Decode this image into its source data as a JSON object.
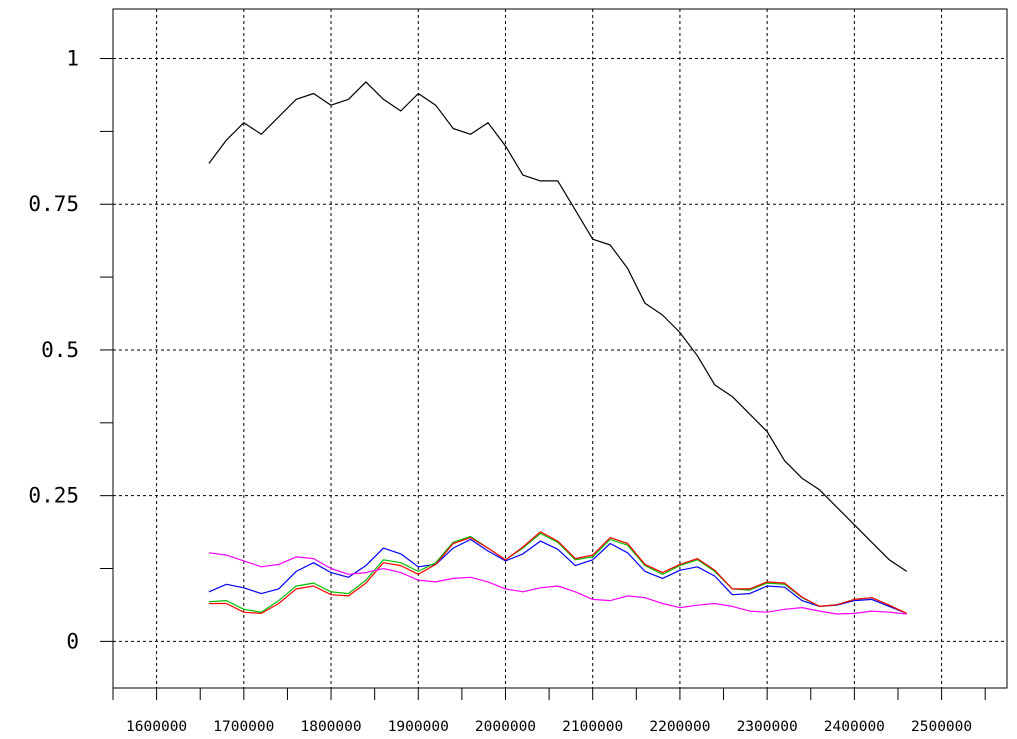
{
  "chart_data": {
    "type": "line",
    "title": "",
    "xlabel": "",
    "ylabel": "",
    "xlim": [
      1550000,
      2575000
    ],
    "ylim": [
      -0.08,
      1.085
    ],
    "grid": true,
    "x_ticks": [
      1600000,
      1700000,
      1800000,
      1900000,
      2000000,
      2100000,
      2200000,
      2300000,
      2400000,
      2500000
    ],
    "x_tick_labels": [
      "1600000",
      "1700000",
      "1800000",
      "1900000",
      "2000000",
      "2100000",
      "2200000",
      "2300000",
      "2400000",
      "2500000"
    ],
    "y_ticks": [
      0,
      0.25,
      0.5,
      0.75,
      1
    ],
    "y_tick_labels": [
      "0",
      "0.25",
      "0.5",
      "0.75",
      "1"
    ],
    "series": [
      {
        "color": "#000000",
        "x": [
          1660000,
          1680000,
          1700000,
          1720000,
          1740000,
          1760000,
          1780000,
          1800000,
          1820000,
          1840000,
          1860000,
          1880000,
          1900000,
          1920000,
          1940000,
          1960000,
          1980000,
          2000000,
          2020000,
          2040000,
          2060000,
          2080000,
          2100000,
          2120000,
          2140000,
          2160000,
          2180000,
          2200000,
          2220000,
          2240000,
          2260000,
          2280000,
          2300000,
          2320000,
          2340000,
          2360000,
          2380000,
          2400000,
          2420000,
          2440000,
          2460000
        ],
        "y": [
          0.82,
          0.86,
          0.89,
          0.87,
          0.9,
          0.93,
          0.94,
          0.92,
          0.93,
          0.96,
          0.93,
          0.91,
          0.94,
          0.92,
          0.88,
          0.87,
          0.89,
          0.85,
          0.8,
          0.79,
          0.79,
          0.74,
          0.69,
          0.68,
          0.64,
          0.58,
          0.56,
          0.53,
          0.49,
          0.44,
          0.42,
          0.39,
          0.36,
          0.31,
          0.28,
          0.26,
          0.23,
          0.2,
          0.17,
          0.14,
          0.12
        ]
      },
      {
        "color": "#0000ff",
        "x": [
          1660000,
          1680000,
          1700000,
          1720000,
          1740000,
          1760000,
          1780000,
          1800000,
          1820000,
          1840000,
          1860000,
          1880000,
          1900000,
          1920000,
          1940000,
          1960000,
          1980000,
          2000000,
          2020000,
          2040000,
          2060000,
          2080000,
          2100000,
          2120000,
          2140000,
          2160000,
          2180000,
          2200000,
          2220000,
          2240000,
          2260000,
          2280000,
          2300000,
          2320000,
          2340000,
          2360000,
          2380000,
          2400000,
          2420000,
          2440000,
          2460000
        ],
        "y": [
          0.085,
          0.098,
          0.092,
          0.082,
          0.09,
          0.12,
          0.135,
          0.118,
          0.11,
          0.13,
          0.16,
          0.15,
          0.128,
          0.132,
          0.16,
          0.175,
          0.155,
          0.138,
          0.15,
          0.172,
          0.158,
          0.13,
          0.14,
          0.168,
          0.152,
          0.12,
          0.108,
          0.122,
          0.128,
          0.112,
          0.08,
          0.082,
          0.095,
          0.093,
          0.07,
          0.06,
          0.062,
          0.07,
          0.072,
          0.06,
          0.048
        ]
      },
      {
        "color": "#00c000",
        "x": [
          1660000,
          1680000,
          1700000,
          1720000,
          1740000,
          1760000,
          1780000,
          1800000,
          1820000,
          1840000,
          1860000,
          1880000,
          1900000,
          1920000,
          1940000,
          1960000,
          1980000,
          2000000,
          2020000,
          2040000,
          2060000,
          2080000,
          2100000,
          2120000,
          2140000,
          2160000,
          2180000,
          2200000,
          2220000,
          2240000,
          2260000,
          2280000,
          2300000,
          2320000,
          2340000,
          2360000,
          2380000,
          2400000,
          2420000,
          2440000,
          2460000
        ],
        "y": [
          0.068,
          0.07,
          0.055,
          0.05,
          0.07,
          0.095,
          0.1,
          0.085,
          0.082,
          0.105,
          0.14,
          0.135,
          0.12,
          0.135,
          0.17,
          0.18,
          0.16,
          0.14,
          0.16,
          0.185,
          0.17,
          0.14,
          0.145,
          0.175,
          0.165,
          0.13,
          0.115,
          0.13,
          0.14,
          0.12,
          0.09,
          0.088,
          0.1,
          0.098,
          0.075,
          0.06,
          0.063,
          0.072,
          0.075,
          0.062,
          0.048
        ]
      },
      {
        "color": "#ff0000",
        "x": [
          1660000,
          1680000,
          1700000,
          1720000,
          1740000,
          1760000,
          1780000,
          1800000,
          1820000,
          1840000,
          1860000,
          1880000,
          1900000,
          1920000,
          1940000,
          1960000,
          1980000,
          2000000,
          2020000,
          2040000,
          2060000,
          2080000,
          2100000,
          2120000,
          2140000,
          2160000,
          2180000,
          2200000,
          2220000,
          2240000,
          2260000,
          2280000,
          2300000,
          2320000,
          2340000,
          2360000,
          2380000,
          2400000,
          2420000,
          2440000,
          2460000
        ],
        "y": [
          0.065,
          0.065,
          0.05,
          0.048,
          0.065,
          0.09,
          0.095,
          0.08,
          0.078,
          0.1,
          0.135,
          0.13,
          0.115,
          0.132,
          0.168,
          0.178,
          0.16,
          0.14,
          0.162,
          0.188,
          0.172,
          0.142,
          0.148,
          0.178,
          0.168,
          0.132,
          0.118,
          0.132,
          0.142,
          0.122,
          0.09,
          0.09,
          0.102,
          0.1,
          0.076,
          0.06,
          0.063,
          0.072,
          0.075,
          0.062,
          0.048
        ]
      },
      {
        "color": "#ff00ff",
        "x": [
          1660000,
          1680000,
          1700000,
          1720000,
          1740000,
          1760000,
          1780000,
          1800000,
          1820000,
          1840000,
          1860000,
          1880000,
          1900000,
          1920000,
          1940000,
          1960000,
          1980000,
          2000000,
          2020000,
          2040000,
          2060000,
          2080000,
          2100000,
          2120000,
          2140000,
          2160000,
          2180000,
          2200000,
          2220000,
          2240000,
          2260000,
          2280000,
          2300000,
          2320000,
          2340000,
          2360000,
          2380000,
          2400000,
          2420000,
          2440000,
          2460000
        ],
        "y": [
          0.152,
          0.148,
          0.138,
          0.128,
          0.132,
          0.145,
          0.142,
          0.125,
          0.115,
          0.118,
          0.125,
          0.118,
          0.105,
          0.102,
          0.108,
          0.11,
          0.102,
          0.09,
          0.085,
          0.092,
          0.095,
          0.085,
          0.072,
          0.07,
          0.078,
          0.075,
          0.065,
          0.058,
          0.062,
          0.065,
          0.06,
          0.052,
          0.05,
          0.055,
          0.058,
          0.052,
          0.047,
          0.048,
          0.052,
          0.05,
          0.047
        ]
      }
    ]
  }
}
